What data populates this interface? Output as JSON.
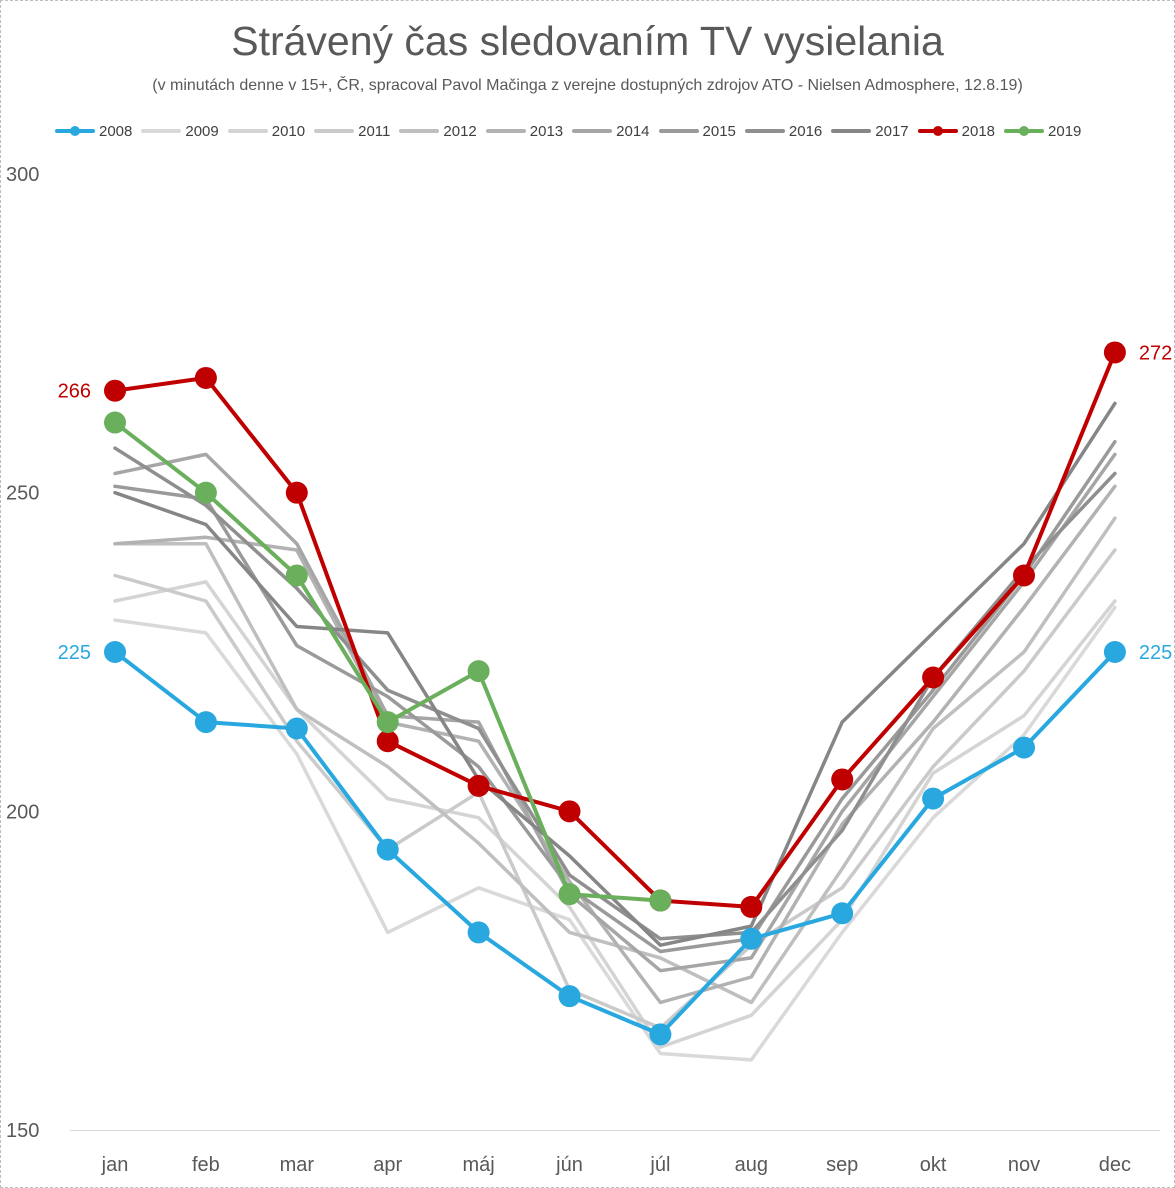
{
  "chart_data": {
    "type": "line",
    "title": "Strávený čas sledovaním TV vysielania",
    "subtitle": "(v minutách denne v 15+, ČR, spracoval Pavol Mačinga z verejne dostupných zdrojov ATO - Nielsen Admosphere, 12.8.19)",
    "xlabel": "",
    "ylabel": "",
    "categories": [
      "jan",
      "feb",
      "mar",
      "apr",
      "máj",
      "jún",
      "júl",
      "aug",
      "sep",
      "okt",
      "nov",
      "dec"
    ],
    "ylim": [
      150,
      300
    ],
    "yticks": [
      150,
      200,
      250,
      300
    ],
    "grid": false,
    "legend_position": "top",
    "series": [
      {
        "name": "2008",
        "color": "#29a8e0",
        "width": 4,
        "markers": true,
        "values": [
          225,
          214,
          213,
          194,
          181,
          171,
          165,
          180,
          184,
          202,
          210,
          225
        ]
      },
      {
        "name": "2009",
        "color": "#d9d9d9",
        "width": 3.5,
        "markers": false,
        "values": [
          230,
          228,
          209,
          181,
          188,
          183,
          162,
          161,
          181,
          199,
          212,
          232
        ]
      },
      {
        "name": "2010",
        "color": "#d4d4d4",
        "width": 3.5,
        "markers": false,
        "values": [
          233,
          236,
          216,
          202,
          199,
          185,
          163,
          168,
          183,
          206,
          215,
          233
        ]
      },
      {
        "name": "2011",
        "color": "#cacaca",
        "width": 3.5,
        "markers": false,
        "values": [
          237,
          233,
          211,
          194,
          203,
          172,
          166,
          179,
          188,
          207,
          222,
          241
        ]
      },
      {
        "name": "2012",
        "color": "#bfbfbf",
        "width": 3.5,
        "markers": false,
        "values": [
          242,
          242,
          216,
          207,
          195,
          181,
          177,
          170,
          191,
          213,
          225,
          246
        ]
      },
      {
        "name": "2013",
        "color": "#b2b2b2",
        "width": 3.5,
        "markers": false,
        "values": [
          242,
          243,
          241,
          214,
          211,
          189,
          170,
          174,
          198,
          214,
          232,
          251
        ]
      },
      {
        "name": "2014",
        "color": "#a6a6a6",
        "width": 3.5,
        "markers": false,
        "values": [
          253,
          256,
          242,
          215,
          214,
          187,
          175,
          177,
          200,
          218,
          236,
          256
        ]
      },
      {
        "name": "2015",
        "color": "#9a9a9a",
        "width": 3.5,
        "markers": false,
        "values": [
          251,
          249,
          226,
          218,
          207,
          188,
          178,
          180,
          202,
          219,
          237,
          258
        ]
      },
      {
        "name": "2016",
        "color": "#8f8f8f",
        "width": 3.5,
        "markers": false,
        "values": [
          257,
          248,
          235,
          219,
          213,
          190,
          180,
          181,
          197,
          221,
          238,
          253
        ]
      },
      {
        "name": "2017",
        "color": "#868686",
        "width": 3.5,
        "markers": false,
        "values": [
          250,
          245,
          229,
          228,
          205,
          193,
          179,
          182,
          214,
          228,
          242,
          264
        ]
      },
      {
        "name": "2018",
        "color": "#c00000",
        "width": 4,
        "markers": true,
        "values": [
          266,
          268,
          250,
          211,
          204,
          200,
          186,
          185,
          205,
          221,
          237,
          272
        ]
      },
      {
        "name": "2019",
        "color": "#6aaf5c",
        "width": 4,
        "markers": true,
        "values": [
          261,
          250,
          237,
          214,
          222,
          187,
          186,
          null,
          null,
          null,
          null,
          null
        ]
      }
    ],
    "annotations": [
      {
        "text": "266",
        "series": "2018",
        "category": "jan",
        "side": "left",
        "color": "#c00000"
      },
      {
        "text": "272",
        "series": "2018",
        "category": "dec",
        "side": "right",
        "color": "#c00000"
      },
      {
        "text": "225",
        "series": "2008",
        "category": "jan",
        "side": "left",
        "color": "#29a8e0"
      },
      {
        "text": "225",
        "series": "2008",
        "category": "dec",
        "side": "right",
        "color": "#29a8e0"
      }
    ]
  }
}
